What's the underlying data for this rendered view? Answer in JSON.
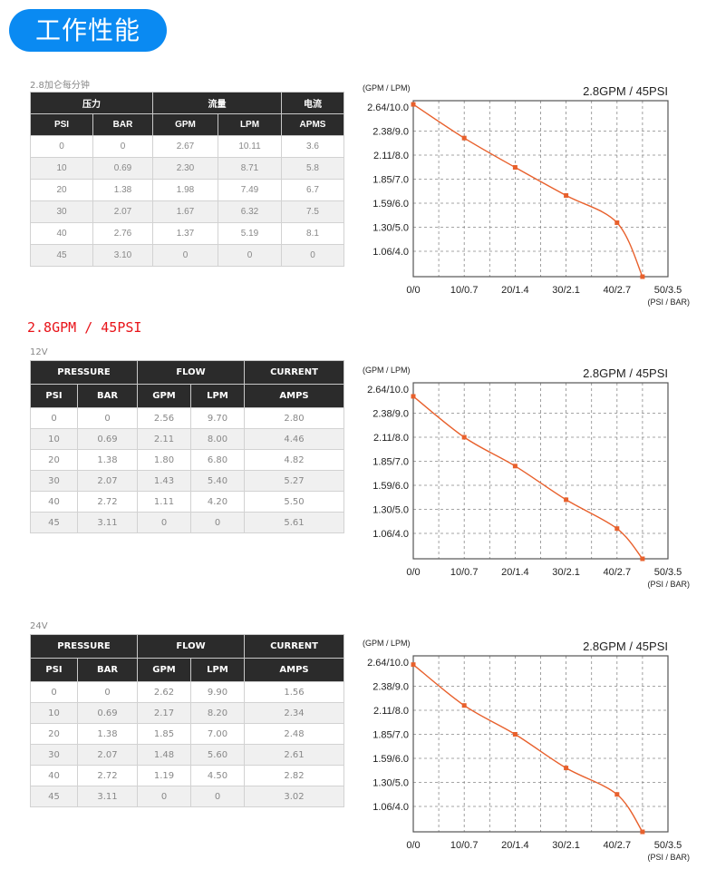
{
  "header": {
    "title": "工作性能"
  },
  "section1": {
    "caption": "2.8加仑每分钟",
    "table": {
      "group_headers": [
        "压力",
        "流量",
        "电流"
      ],
      "columns": [
        "PSI",
        "BAR",
        "GPM",
        "LPM",
        "APMS"
      ],
      "rows": [
        [
          "0",
          "0",
          "2.67",
          "10.11",
          "3.6"
        ],
        [
          "10",
          "0.69",
          "2.30",
          "8.71",
          "5.8"
        ],
        [
          "20",
          "1.38",
          "1.98",
          "7.49",
          "6.7"
        ],
        [
          "30",
          "2.07",
          "1.67",
          "6.32",
          "7.5"
        ],
        [
          "40",
          "2.76",
          "1.37",
          "5.19",
          "8.1"
        ],
        [
          "45",
          "3.10",
          "0",
          "0",
          "0"
        ]
      ]
    }
  },
  "model_title": "2.8GPM / 45PSI",
  "section2": {
    "caption": "12V",
    "table": {
      "group_headers": [
        "PRESSURE",
        "FLOW",
        "CURRENT"
      ],
      "columns": [
        "PSI",
        "BAR",
        "GPM",
        "LPM",
        "AMPS"
      ],
      "rows": [
        [
          "0",
          "0",
          "2.56",
          "9.70",
          "2.80"
        ],
        [
          "10",
          "0.69",
          "2.11",
          "8.00",
          "4.46"
        ],
        [
          "20",
          "1.38",
          "1.80",
          "6.80",
          "4.82"
        ],
        [
          "30",
          "2.07",
          "1.43",
          "5.40",
          "5.27"
        ],
        [
          "40",
          "2.72",
          "1.11",
          "4.20",
          "5.50"
        ],
        [
          "45",
          "3.11",
          "0",
          "0",
          "5.61"
        ]
      ]
    }
  },
  "section3": {
    "caption": "24V",
    "table": {
      "group_headers": [
        "PRESSURE",
        "FLOW",
        "CURRENT"
      ],
      "columns": [
        "PSI",
        "BAR",
        "GPM",
        "LPM",
        "AMPS"
      ],
      "rows": [
        [
          "0",
          "0",
          "2.62",
          "9.90",
          "1.56"
        ],
        [
          "10",
          "0.69",
          "2.17",
          "8.20",
          "2.34"
        ],
        [
          "20",
          "1.38",
          "1.85",
          "7.00",
          "2.48"
        ],
        [
          "30",
          "2.07",
          "1.48",
          "5.60",
          "2.61"
        ],
        [
          "40",
          "2.72",
          "1.19",
          "4.50",
          "2.82"
        ],
        [
          "45",
          "3.11",
          "0",
          "0",
          "3.02"
        ]
      ]
    }
  },
  "chart_data": [
    {
      "type": "line",
      "title": "2.8GPM / 45PSI",
      "ylabel": "(GPM / LPM)",
      "xlabel": "(PSI / BAR)",
      "y_ticks": [
        "2.64/10.0",
        "2.38/9.0",
        "2.11/8.0",
        "1.85/7.0",
        "1.59/6.0",
        "1.30/5.0",
        "1.06/4.0"
      ],
      "x_ticks": [
        "0/0",
        "10/0.7",
        "20/1.4",
        "30/2.1",
        "40/2.7",
        "50/3.5"
      ],
      "xlim": [
        0,
        50
      ],
      "ylim_lpm": [
        3.0,
        10.25
      ],
      "grid": true,
      "color": "#e8602c",
      "x": [
        0,
        10,
        20,
        30,
        40,
        45
      ],
      "series": [
        {
          "name": "GPM",
          "values": [
            2.67,
            2.3,
            1.98,
            1.67,
            1.37,
            0
          ]
        },
        {
          "name": "LPM",
          "values": [
            10.11,
            8.71,
            7.49,
            6.32,
            5.19,
            0
          ]
        }
      ]
    },
    {
      "type": "line",
      "title": "2.8GPM / 45PSI",
      "ylabel": "(GPM / LPM)",
      "xlabel": "(PSI / BAR)",
      "y_ticks": [
        "2.64/10.0",
        "2.38/9.0",
        "2.11/8.0",
        "1.85/7.0",
        "1.59/6.0",
        "1.30/5.0",
        "1.06/4.0"
      ],
      "x_ticks": [
        "0/0",
        "10/0.7",
        "20/1.4",
        "30/2.1",
        "40/2.7",
        "50/3.5"
      ],
      "xlim": [
        0,
        50
      ],
      "ylim_lpm": [
        3.0,
        10.25
      ],
      "grid": true,
      "color": "#e8602c",
      "x": [
        0,
        10,
        20,
        30,
        40,
        45
      ],
      "series": [
        {
          "name": "GPM",
          "values": [
            2.56,
            2.11,
            1.8,
            1.43,
            1.11,
            0
          ]
        },
        {
          "name": "LPM",
          "values": [
            9.7,
            8.0,
            6.8,
            5.4,
            4.2,
            0
          ]
        }
      ]
    },
    {
      "type": "line",
      "title": "2.8GPM / 45PSI",
      "ylabel": "(GPM / LPM)",
      "xlabel": "(PSI / BAR)",
      "y_ticks": [
        "2.64/10.0",
        "2.38/9.0",
        "2.11/8.0",
        "1.85/7.0",
        "1.59/6.0",
        "1.30/5.0",
        "1.06/4.0"
      ],
      "x_ticks": [
        "0/0",
        "10/0.7",
        "20/1.4",
        "30/2.1",
        "40/2.7",
        "50/3.5"
      ],
      "xlim": [
        0,
        50
      ],
      "ylim_lpm": [
        3.0,
        10.25
      ],
      "grid": true,
      "color": "#e8602c",
      "x": [
        0,
        10,
        20,
        30,
        40,
        45
      ],
      "series": [
        {
          "name": "GPM",
          "values": [
            2.62,
            2.17,
            1.85,
            1.48,
            1.19,
            0
          ]
        },
        {
          "name": "LPM",
          "values": [
            9.9,
            8.2,
            7.0,
            5.6,
            4.5,
            0
          ]
        }
      ]
    }
  ]
}
